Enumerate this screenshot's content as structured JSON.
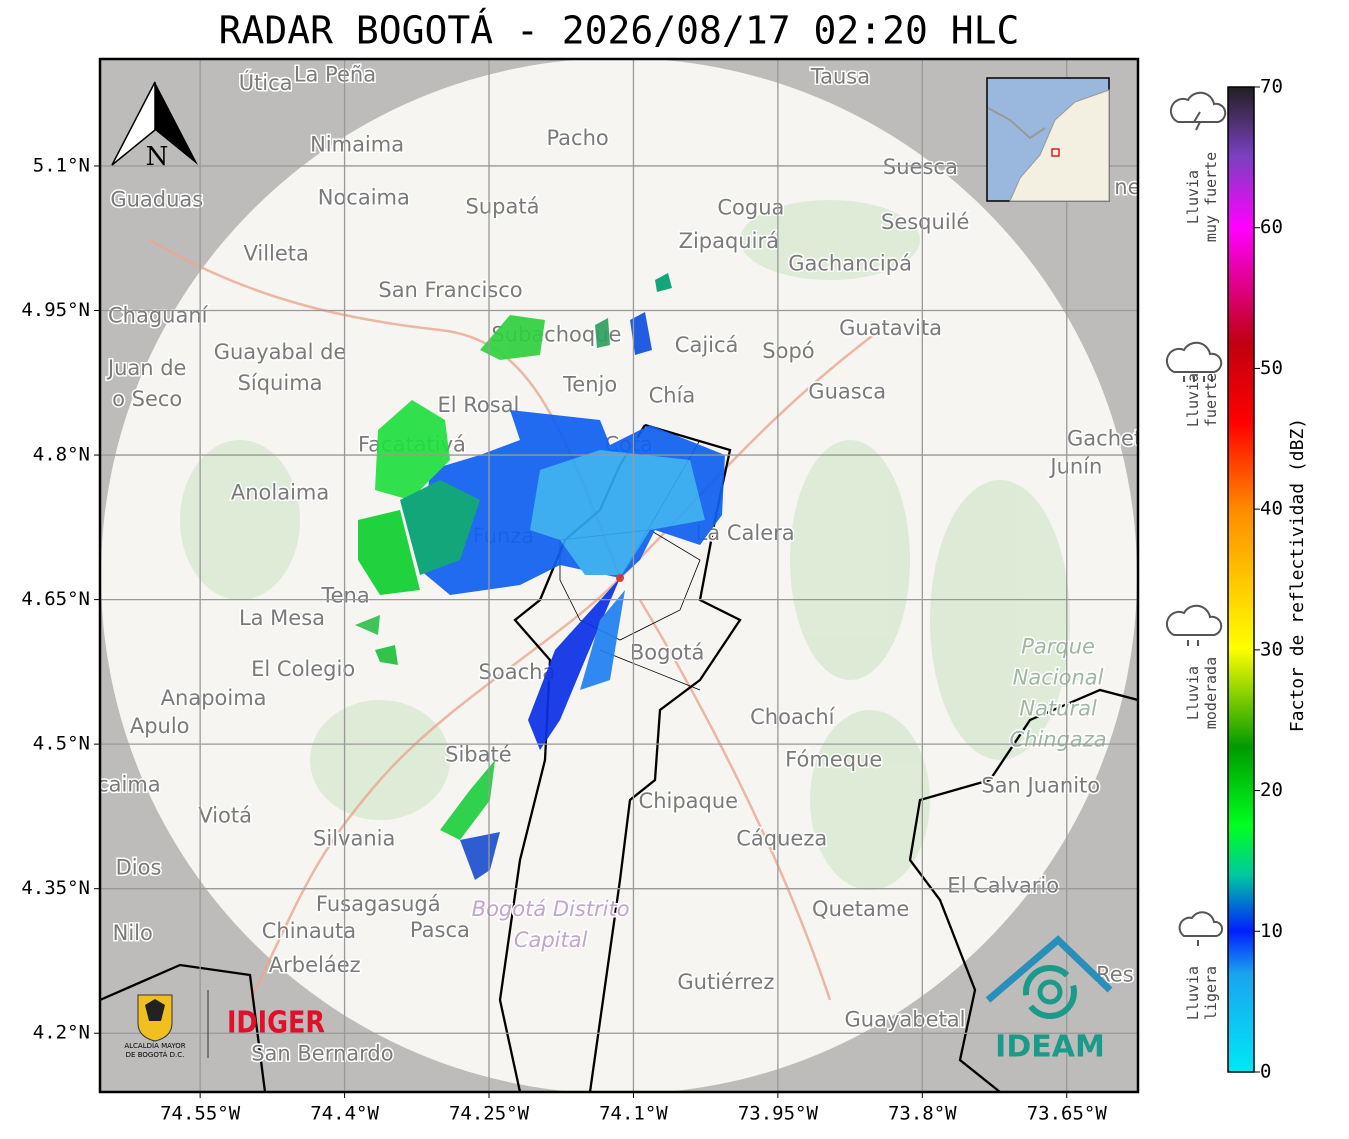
{
  "map": {
    "title": "RADAR BOGOTÁ - 2026/08/17 02:20 HLC",
    "xlim": [
      -74.654,
      -73.576
    ],
    "ylim": [
      4.139,
      5.211
    ],
    "xticks": [
      {
        "value": -74.55,
        "label": "74.55°W"
      },
      {
        "value": -74.4,
        "label": "74.4°W"
      },
      {
        "value": -74.25,
        "label": "74.25°W"
      },
      {
        "value": -74.1,
        "label": "74.1°W"
      },
      {
        "value": -73.95,
        "label": "73.95°W"
      },
      {
        "value": -73.8,
        "label": "73.8°W"
      },
      {
        "value": -73.65,
        "label": "73.65°W"
      }
    ],
    "yticks": [
      {
        "value": 5.1,
        "label": "5.1°N"
      },
      {
        "value": 4.95,
        "label": "4.95°N"
      },
      {
        "value": 4.8,
        "label": "4.8°N"
      },
      {
        "value": 4.65,
        "label": "4.65°N"
      },
      {
        "value": 4.5,
        "label": "4.5°N"
      },
      {
        "value": 4.35,
        "label": "4.35°N"
      },
      {
        "value": 4.2,
        "label": "4.2°N"
      }
    ],
    "grid": true,
    "north": "N",
    "places": [
      {
        "name": "Útica",
        "lon": -74.482,
        "lat": 5.185
      },
      {
        "name": "La Peña",
        "lon": -74.41,
        "lat": 5.194
      },
      {
        "name": "Tausa",
        "lon": -73.885,
        "lat": 5.192
      },
      {
        "name": "Pacho",
        "lon": -74.158,
        "lat": 5.128
      },
      {
        "name": "Nimaima",
        "lon": -74.387,
        "lat": 5.121
      },
      {
        "name": "Suesca",
        "lon": -73.802,
        "lat": 5.098
      },
      {
        "name": "ne",
        "lon": -73.587,
        "lat": 5.077
      },
      {
        "name": "Guaduas",
        "lon": -74.595,
        "lat": 5.064
      },
      {
        "name": "Nocaima",
        "lon": -74.38,
        "lat": 5.066
      },
      {
        "name": "Supatá",
        "lon": -74.236,
        "lat": 5.057
      },
      {
        "name": "Cogua",
        "lon": -73.978,
        "lat": 5.056
      },
      {
        "name": "Sesquilé",
        "lon": -73.797,
        "lat": 5.041
      },
      {
        "name": "Zipaquirá",
        "lon": -74.001,
        "lat": 5.021
      },
      {
        "name": "Villeta",
        "lon": -74.471,
        "lat": 5.008
      },
      {
        "name": "Gachancipá",
        "lon": -73.875,
        "lat": 4.998
      },
      {
        "name": "San Francisco",
        "lon": -74.29,
        "lat": 4.97
      },
      {
        "name": "Chaguaní",
        "lon": -74.594,
        "lat": 4.944
      },
      {
        "name": "Guatavita",
        "lon": -73.833,
        "lat": 4.931
      },
      {
        "name": "Subachoque",
        "lon": -74.18,
        "lat": 4.924
      },
      {
        "name": "Cajicá",
        "lon": -74.024,
        "lat": 4.913
      },
      {
        "name": "Sopó",
        "lon": -73.939,
        "lat": 4.907
      },
      {
        "lines": [
          "Guayabal de",
          "Síquima"
        ],
        "lon": -74.467,
        "lat": 4.89
      },
      {
        "lines": [
          "Juan de",
          "o Seco"
        ],
        "lon": -74.605,
        "lat": 4.873
      },
      {
        "name": "Tenjo",
        "lon": -74.145,
        "lat": 4.872
      },
      {
        "name": "Chía",
        "lon": -74.06,
        "lat": 4.861
      },
      {
        "name": "Guasca",
        "lon": -73.878,
        "lat": 4.865
      },
      {
        "name": "El Rosal",
        "lon": -74.261,
        "lat": 4.851
      },
      {
        "name": "Facatativá",
        "lon": -74.33,
        "lat": 4.81
      },
      {
        "name": "Cota",
        "lon": -74.105,
        "lat": 4.81
      },
      {
        "name": "Gachetá",
        "lon": -73.604,
        "lat": 4.816
      },
      {
        "name": "Junín",
        "lon": -73.64,
        "lat": 4.787
      },
      {
        "name": "Anolaima",
        "lon": -74.467,
        "lat": 4.76
      },
      {
        "name": "La Calera",
        "lon": -73.984,
        "lat": 4.718
      },
      {
        "name": "Funza",
        "lon": -74.235,
        "lat": 4.715
      },
      {
        "name": "Tena",
        "lon": -74.399,
        "lat": 4.653
      },
      {
        "name": "La Mesa",
        "lon": -74.465,
        "lat": 4.63
      },
      {
        "name": "Bogotá",
        "lon": -74.065,
        "lat": 4.594
      },
      {
        "lines": [
          "Parque",
          "Nacional",
          "Natural",
          "Chingaza"
        ],
        "lon": -73.659,
        "lat": 4.552,
        "italic": true,
        "color": "#9cb8a2"
      },
      {
        "name": "El Colegio",
        "lon": -74.443,
        "lat": 4.577
      },
      {
        "name": "Soacha",
        "lon": -74.221,
        "lat": 4.574
      },
      {
        "name": "Anapoima",
        "lon": -74.536,
        "lat": 4.547
      },
      {
        "name": "Apulo",
        "lon": -74.592,
        "lat": 4.518
      },
      {
        "name": "Choachí",
        "lon": -73.935,
        "lat": 4.527
      },
      {
        "name": "Sibaté",
        "lon": -74.261,
        "lat": 4.488
      },
      {
        "name": "Fómeque",
        "lon": -73.892,
        "lat": 4.483
      },
      {
        "name": "San Juanito",
        "lon": -73.677,
        "lat": 4.456
      },
      {
        "name": "caima",
        "lon": -74.624,
        "lat": 4.457
      },
      {
        "name": "Viotá",
        "lon": -74.524,
        "lat": 4.425
      },
      {
        "name": "Chipaque",
        "lon": -74.043,
        "lat": 4.44
      },
      {
        "name": "Silvania",
        "lon": -74.39,
        "lat": 4.401
      },
      {
        "name": "Cáqueza",
        "lon": -73.946,
        "lat": 4.401
      },
      {
        "name": "Dios",
        "lon": -74.614,
        "lat": 4.371
      },
      {
        "name": "El Calvario",
        "lon": -73.716,
        "lat": 4.352
      },
      {
        "name": "Fusagasugá",
        "lon": -74.365,
        "lat": 4.333
      },
      {
        "lines": [
          "Bogotá Distrito",
          "Capital"
        ],
        "lon": -74.186,
        "lat": 4.312,
        "italic": true,
        "color": "#c0a6c8"
      },
      {
        "name": "Quetame",
        "lon": -73.864,
        "lat": 4.328
      },
      {
        "name": "Nilo",
        "lon": -74.62,
        "lat": 4.303
      },
      {
        "name": "Chinauta",
        "lon": -74.437,
        "lat": 4.305
      },
      {
        "name": "Pasca",
        "lon": -74.301,
        "lat": 4.306
      },
      {
        "name": "Arbeláez",
        "lon": -74.431,
        "lat": 4.27
      },
      {
        "name": "Res",
        "lon": -73.6,
        "lat": 4.26
      },
      {
        "name": "Gutiérrez",
        "lon": -74.004,
        "lat": 4.252
      },
      {
        "name": "Guayabetal",
        "lon": -73.818,
        "lat": 4.213
      },
      {
        "name": "San Bernardo",
        "lon": -74.423,
        "lat": 4.178
      }
    ],
    "logos": {
      "alcaldia": [
        "ALCALDÍA MAYOR",
        "DE BOGOTÁ D.C."
      ],
      "idiger": "IDIGER",
      "ideam": "IDEAM"
    },
    "colorbar": {
      "label": "Factor de reflectividad (dBZ)",
      "lim": [
        0,
        70
      ],
      "ticks": [
        0,
        10,
        20,
        30,
        40,
        50,
        60,
        70
      ]
    },
    "categories": [
      [
        "Lluvia",
        "muy fuerte"
      ],
      [
        "Lluvia",
        "fuerte"
      ],
      [
        "Lluvia",
        "moderada"
      ],
      [
        "Lluvia",
        "ligera"
      ]
    ]
  }
}
